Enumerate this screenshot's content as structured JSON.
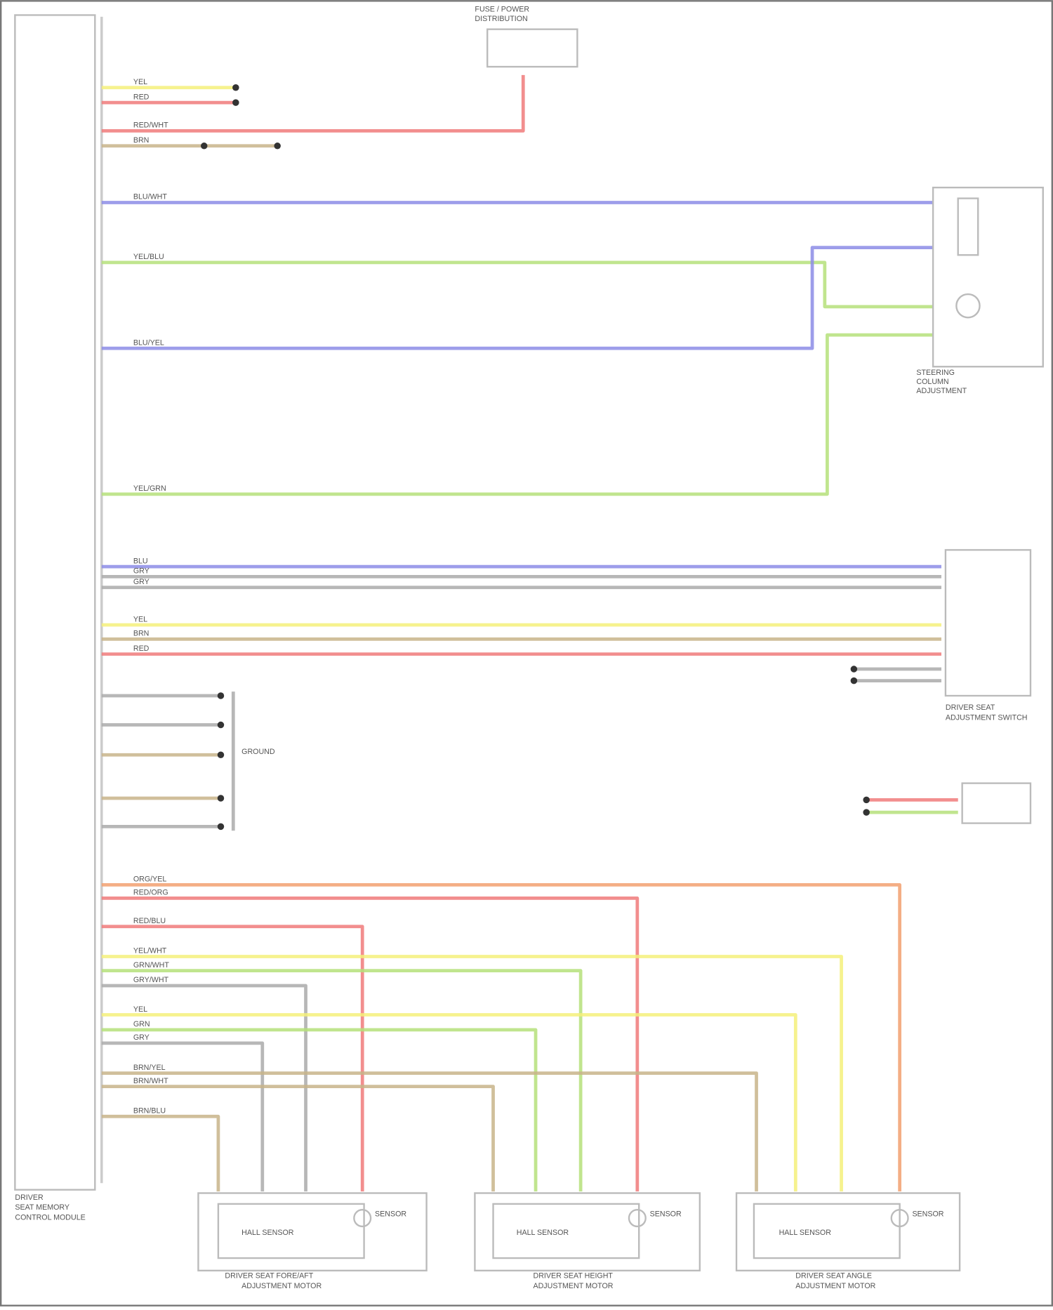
{
  "diagram": {
    "module_label": [
      "DRIVER",
      "SEAT MEMORY",
      "CONTROL MODULE"
    ],
    "fuse_label": [
      "FUSE / POWER",
      "DISTRIBUTION"
    ],
    "wire_labels": {
      "w1": "YEL",
      "w2": "RED",
      "w3": "RED/WHT",
      "w4": "BRN",
      "w5": "BLU/WHT",
      "w6": "YEL/BLU",
      "w7": "BLU/YEL",
      "w8": "YEL/GRN",
      "w9": "BLU",
      "w10": "GRY",
      "w11": "GRY",
      "w12": "YEL",
      "w13": "BRN",
      "w14": "RED",
      "w15": "ORG/YEL",
      "w16": "RED/ORG",
      "w17": "RED/BLU",
      "w18": "YEL/WHT",
      "w19": "GRN/WHT",
      "w20": "GRY/WHT",
      "w21": "YEL",
      "w22": "GRN",
      "w23": "GRY",
      "w24": "BRN/YEL",
      "w25": "BRN/WHT",
      "w26": "BRN/BLU"
    },
    "components": {
      "steering": [
        "STEERING",
        "COLUMN",
        "ADJUSTMENT"
      ],
      "seat_switch": [
        "DRIVER SEAT",
        "ADJUSTMENT SWITCH"
      ],
      "ground": [
        "GROUND"
      ],
      "motor1": [
        "DRIVER SEAT FORE/AFT",
        "ADJUSTMENT MOTOR"
      ],
      "motor2": [
        "DRIVER SEAT HEIGHT",
        "ADJUSTMENT MOTOR"
      ],
      "motor3": [
        "DRIVER SEAT ANGLE",
        "ADJUSTMENT MOTOR"
      ],
      "sensor": "SENSOR",
      "hall": "HALL SENSOR"
    },
    "colors": {
      "yellow": "#f4f07a",
      "red": "#f07a7a",
      "blue": "#8c8ce6",
      "green": "#b5e07a",
      "tan": "#c8b48a",
      "gray": "#aaaaaa",
      "orange": "#f2a070"
    }
  }
}
